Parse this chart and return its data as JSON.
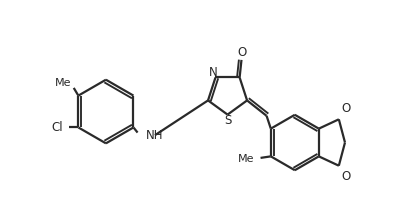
{
  "bg_color": "#ffffff",
  "line_color": "#2a2a2a",
  "line_width": 1.6,
  "dbo": 0.055,
  "figsize": [
    4.12,
    2.21
  ],
  "dpi": 100,
  "xlim": [
    -4.6,
    3.4
  ],
  "ylim": [
    -1.3,
    1.5
  ]
}
